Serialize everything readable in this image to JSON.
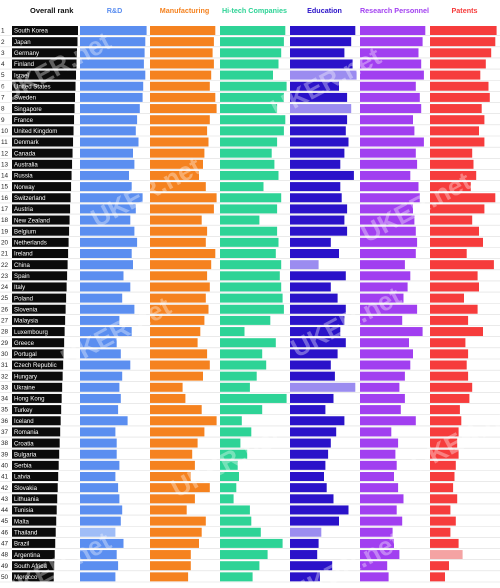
{
  "chart_data": {
    "type": "bar",
    "rank_header": "Overall rank",
    "columns": [
      {
        "name": "R&D",
        "color": "#5b8ef0"
      },
      {
        "name": "Manufacturing",
        "color": "#f5821f"
      },
      {
        "name": "Hi-tech Companies",
        "color": "#2ed396"
      },
      {
        "name": "Education",
        "color": "#2a12c9"
      },
      {
        "name": "Research Personnel",
        "color": "#a13ff0"
      },
      {
        "name": "Patents",
        "color": "#f63c3c"
      }
    ],
    "highlight_colors": {
      "R&D": "#9fbdf7",
      "Education": "#9b8cf0",
      "Patents": "#f4a3a3"
    },
    "ranks": [
      1,
      2,
      3,
      4,
      5,
      6,
      7,
      8,
      9,
      10,
      11,
      12,
      13,
      14,
      15,
      16,
      17,
      18,
      19,
      20,
      21,
      22,
      23,
      24,
      25,
      26,
      27,
      28,
      29,
      30,
      31,
      32,
      33,
      34,
      35,
      36,
      37,
      38,
      39,
      40,
      41,
      42,
      43,
      44,
      45,
      46,
      47,
      48,
      49,
      50
    ],
    "countries": [
      "South Korea",
      "Japan",
      "Germany",
      "Finland",
      "Israel",
      "United States",
      "Sweden",
      "Singapore",
      "France",
      "United Kingdom",
      "Denmark",
      "Canada",
      "Australia",
      "Russia",
      "Norway",
      "Switzerland",
      "Austria",
      "New Zealand",
      "Belgium",
      "Netherlands",
      "Ireland",
      "China",
      "Spain",
      "Italy",
      "Poland",
      "Slovenia",
      "Malaysia",
      "Luxembourg",
      "Greece",
      "Portugal",
      "Czech Republic",
      "Hungary",
      "Ukraine",
      "Hong Kong",
      "Turkey",
      "Iceland",
      "Romania",
      "Croatia",
      "Bulgaria",
      "Serbia",
      "Latvia",
      "Slovakia",
      "Lithuania",
      "Tunisia",
      "Malta",
      "Thailand",
      "Brazil",
      "Argentina",
      "South Africa",
      "Morocco"
    ],
    "series": [
      {
        "name": "R&D",
        "values": [
          0.98,
          0.96,
          0.95,
          0.94,
          0.96,
          0.93,
          0.92,
          0.88,
          0.84,
          0.82,
          0.86,
          0.78,
          0.8,
          0.72,
          0.76,
          0.92,
          0.82,
          0.74,
          0.8,
          0.84,
          0.76,
          0.78,
          0.64,
          0.74,
          0.62,
          0.8,
          0.58,
          0.76,
          0.54,
          0.6,
          0.74,
          0.62,
          0.58,
          0.6,
          0.56,
          0.7,
          0.52,
          0.54,
          0.54,
          0.58,
          0.52,
          0.56,
          0.58,
          0.62,
          0.6,
          0.52,
          0.64,
          0.54,
          0.56,
          0.52
        ]
      },
      {
        "name": "Manufacturing",
        "values": [
          0.96,
          0.94,
          0.92,
          0.94,
          0.9,
          0.88,
          0.96,
          0.98,
          0.88,
          0.84,
          0.86,
          0.8,
          0.78,
          0.72,
          0.82,
          0.98,
          0.94,
          0.76,
          0.84,
          0.82,
          0.96,
          0.9,
          0.84,
          0.88,
          0.82,
          0.86,
          0.8,
          0.74,
          0.7,
          0.84,
          0.88,
          0.78,
          0.48,
          0.52,
          0.76,
          0.98,
          0.8,
          0.7,
          0.62,
          0.66,
          0.6,
          0.88,
          0.66,
          0.54,
          0.82,
          0.76,
          0.72,
          0.6,
          0.6,
          0.56
        ]
      },
      {
        "name": "Hi-tech Companies",
        "values": [
          0.96,
          0.94,
          0.9,
          0.86,
          0.78,
          0.98,
          0.94,
          0.84,
          0.96,
          0.94,
          0.84,
          0.76,
          0.8,
          0.86,
          0.64,
          0.9,
          0.84,
          0.58,
          0.84,
          0.86,
          0.82,
          0.9,
          0.88,
          0.9,
          0.92,
          0.94,
          0.74,
          0.36,
          0.82,
          0.62,
          0.68,
          0.54,
          0.44,
          0.98,
          0.62,
          0.32,
          0.46,
          0.3,
          0.4,
          0.26,
          0.28,
          0.24,
          0.2,
          0.44,
          0.46,
          0.6,
          0.92,
          0.7,
          0.58,
          0.48
        ]
      },
      {
        "name": "Education",
        "values": [
          0.96,
          0.9,
          0.8,
          0.92,
          0.98,
          0.72,
          0.84,
          0.9,
          0.84,
          0.82,
          0.86,
          0.8,
          0.74,
          0.94,
          0.74,
          0.76,
          0.84,
          0.8,
          0.84,
          0.6,
          0.72,
          0.42,
          0.82,
          0.6,
          0.7,
          0.82,
          0.8,
          0.74,
          0.82,
          0.7,
          0.6,
          0.66,
          0.96,
          0.64,
          0.52,
          0.8,
          0.68,
          0.6,
          0.56,
          0.52,
          0.5,
          0.54,
          0.64,
          0.86,
          0.72,
          0.46,
          0.42,
          0.4,
          0.62,
          0.44
        ]
      },
      {
        "name": "Research Personnel",
        "values": [
          0.96,
          0.92,
          0.86,
          0.9,
          0.94,
          0.82,
          0.88,
          0.9,
          0.78,
          0.8,
          0.94,
          0.82,
          0.84,
          0.74,
          0.86,
          0.88,
          0.78,
          0.8,
          0.82,
          0.84,
          0.82,
          0.66,
          0.74,
          0.7,
          0.64,
          0.84,
          0.62,
          0.92,
          0.72,
          0.78,
          0.74,
          0.66,
          0.58,
          0.66,
          0.6,
          0.82,
          0.46,
          0.56,
          0.52,
          0.54,
          0.5,
          0.56,
          0.64,
          0.54,
          0.62,
          0.48,
          0.5,
          0.58,
          0.4,
          0.42
        ]
      },
      {
        "name": "Patents",
        "values": [
          0.98,
          0.96,
          0.9,
          0.82,
          0.74,
          0.86,
          0.88,
          0.76,
          0.8,
          0.72,
          0.8,
          0.62,
          0.64,
          0.68,
          0.6,
          0.96,
          0.8,
          0.62,
          0.72,
          0.78,
          0.54,
          0.94,
          0.7,
          0.72,
          0.5,
          0.7,
          0.56,
          0.78,
          0.52,
          0.56,
          0.54,
          0.56,
          0.62,
          0.58,
          0.44,
          0.46,
          0.42,
          0.4,
          0.42,
          0.38,
          0.36,
          0.34,
          0.4,
          0.3,
          0.38,
          0.3,
          0.42,
          0.48,
          0.28,
          0.22
        ]
      }
    ],
    "highlights": [
      {
        "series": "Education",
        "rank": 5
      },
      {
        "series": "Education",
        "rank": 8
      },
      {
        "series": "Education",
        "rank": 22
      },
      {
        "series": "Education",
        "rank": 33
      },
      {
        "series": "R&D",
        "rank": 46
      },
      {
        "series": "Education",
        "rank": 46
      },
      {
        "series": "Patents",
        "rank": 48
      }
    ],
    "watermark": "UKER.net",
    "xlim": [
      0,
      1
    ],
    "grid": false,
    "legend": "top"
  }
}
